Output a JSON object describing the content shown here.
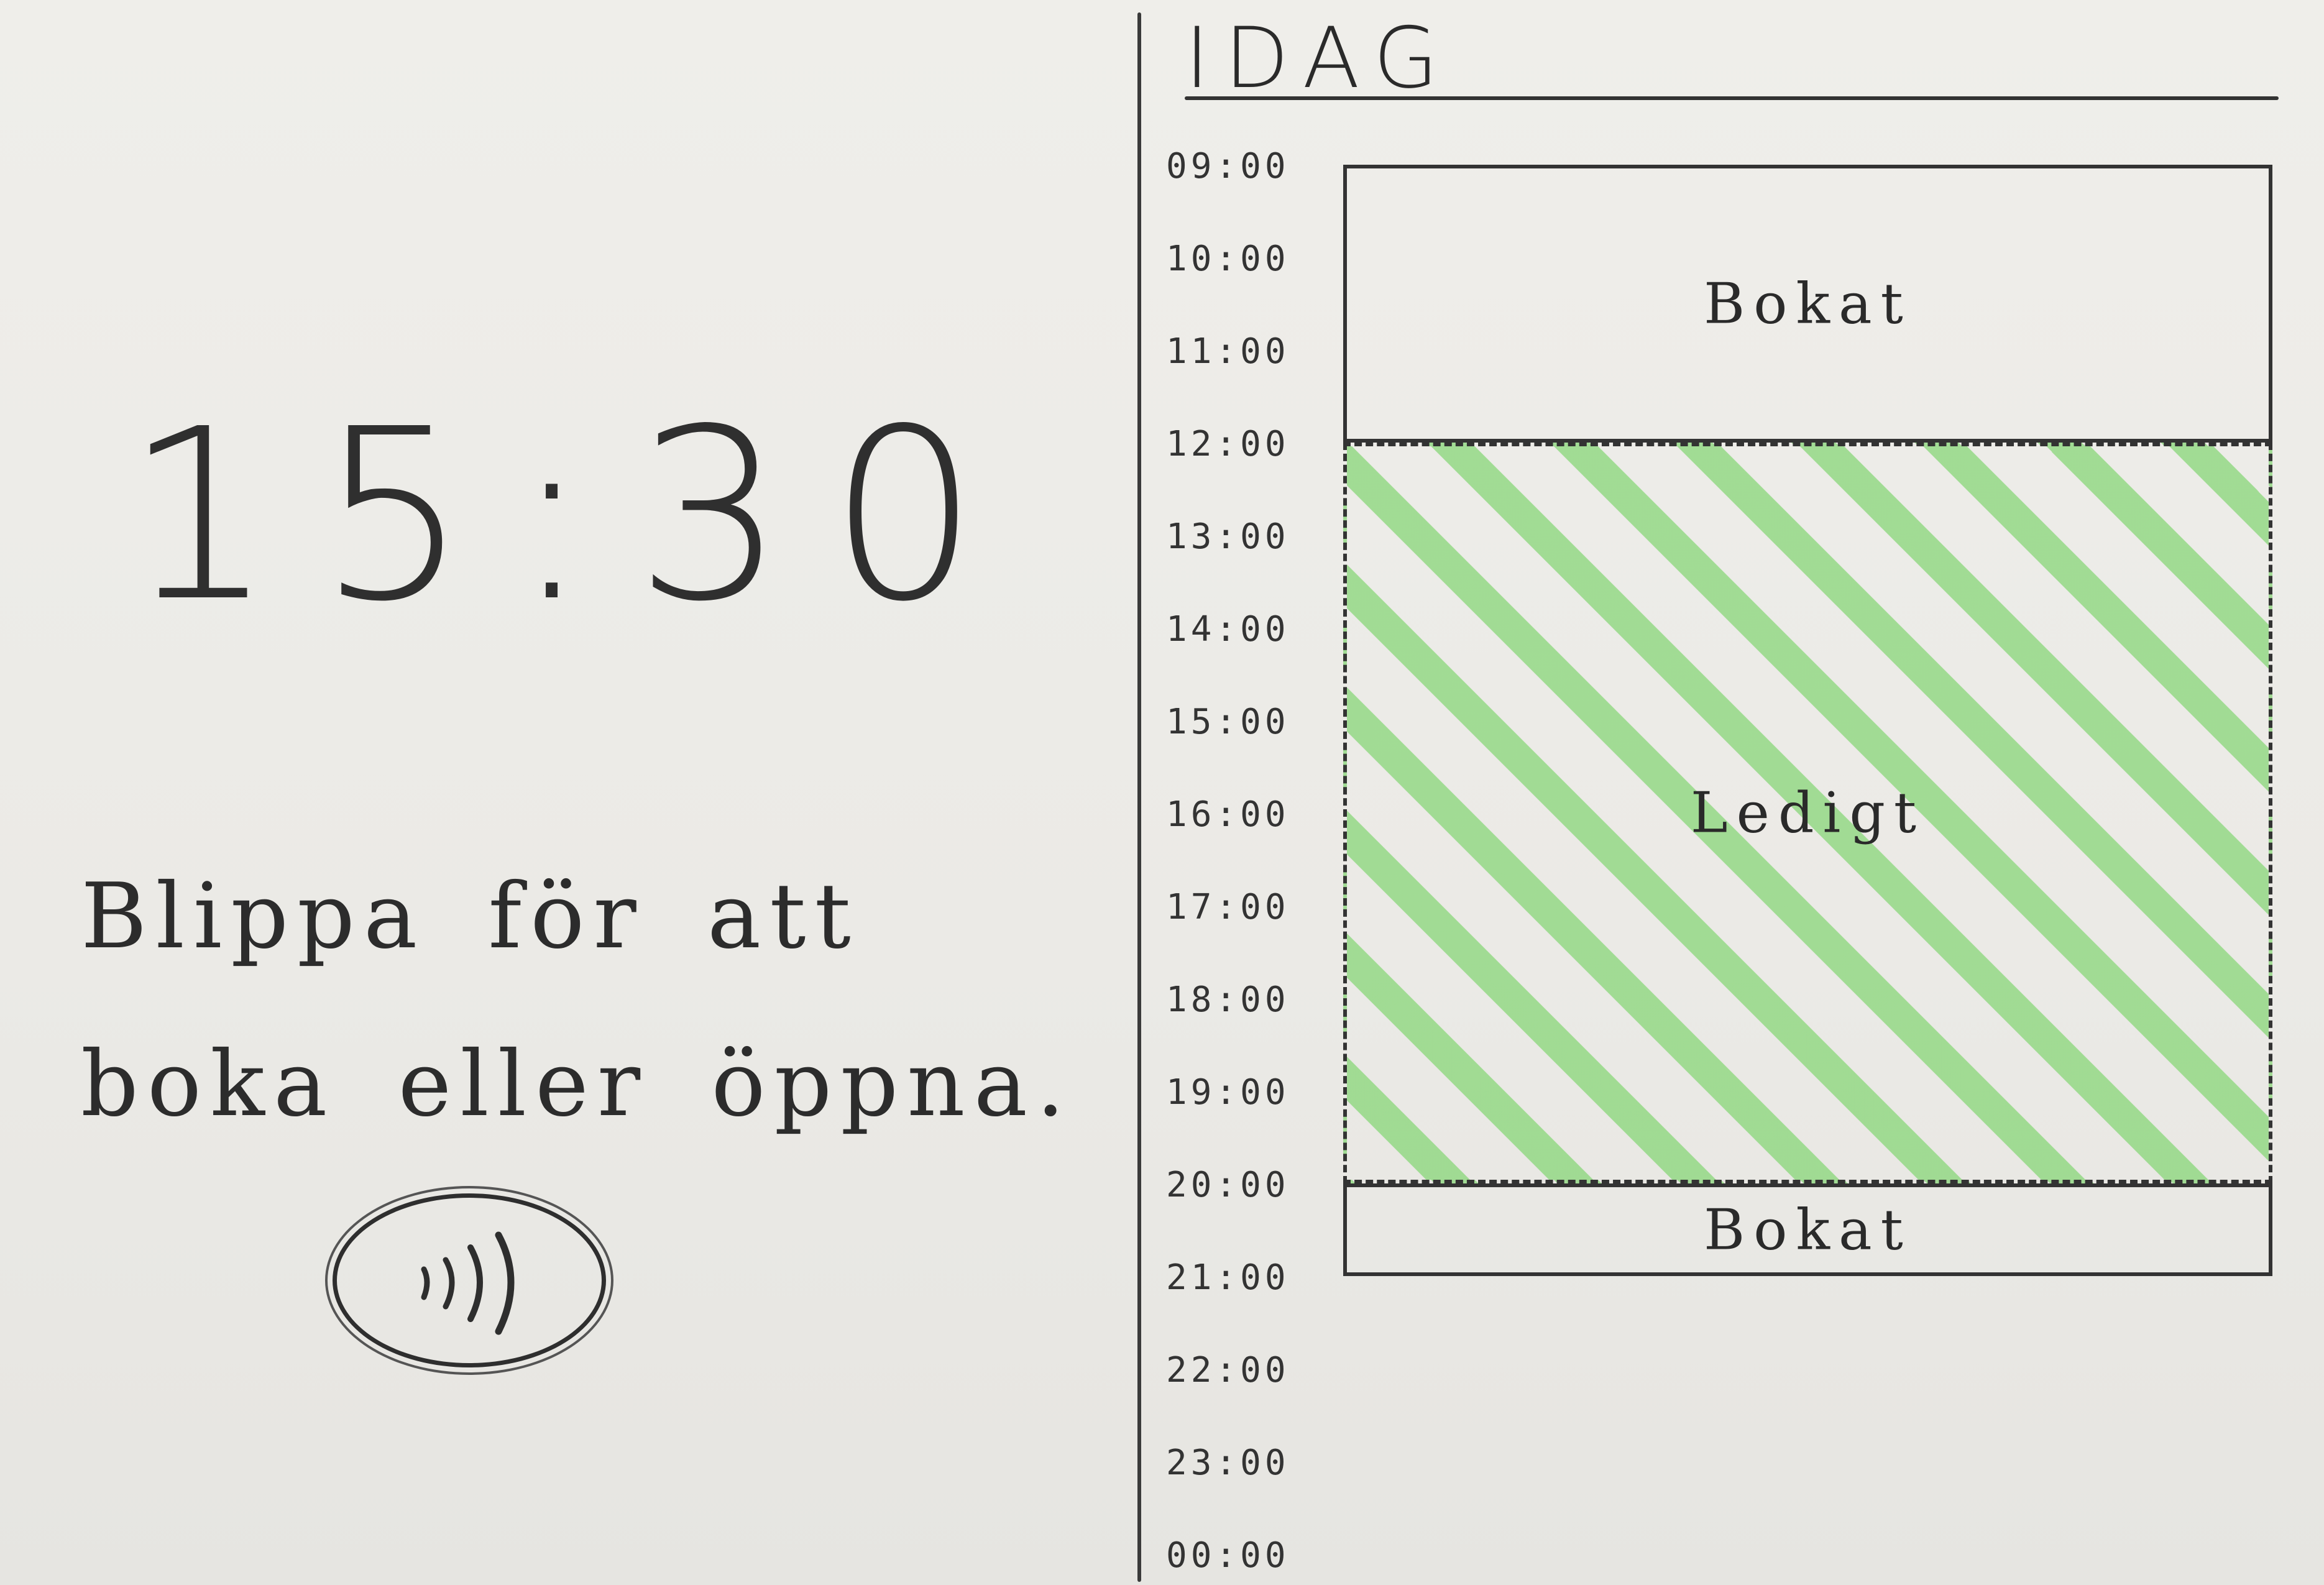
{
  "left": {
    "clock": "15:30",
    "instruction_line1": "Blippa för att",
    "instruction_line2": "boka eller öppna."
  },
  "schedule": {
    "title": "IDAG",
    "hours": [
      "09:00",
      "10:00",
      "11:00",
      "12:00",
      "13:00",
      "14:00",
      "15:00",
      "16:00",
      "17:00",
      "18:00",
      "19:00",
      "20:00",
      "21:00",
      "22:00",
      "23:00",
      "00:00"
    ],
    "slots": [
      {
        "label": "Bokat",
        "start": "09:00",
        "end": "12:00",
        "status": "booked"
      },
      {
        "label": "Ledigt",
        "start": "12:00",
        "end": "20:00",
        "status": "free"
      },
      {
        "label": "Bokat",
        "start": "20:00",
        "end": "21:00",
        "status": "booked"
      }
    ]
  },
  "icons": {
    "nfc": "nfc-icon"
  },
  "colors": {
    "free_hatch": "#88d678",
    "ink": "#2a2a2a"
  }
}
